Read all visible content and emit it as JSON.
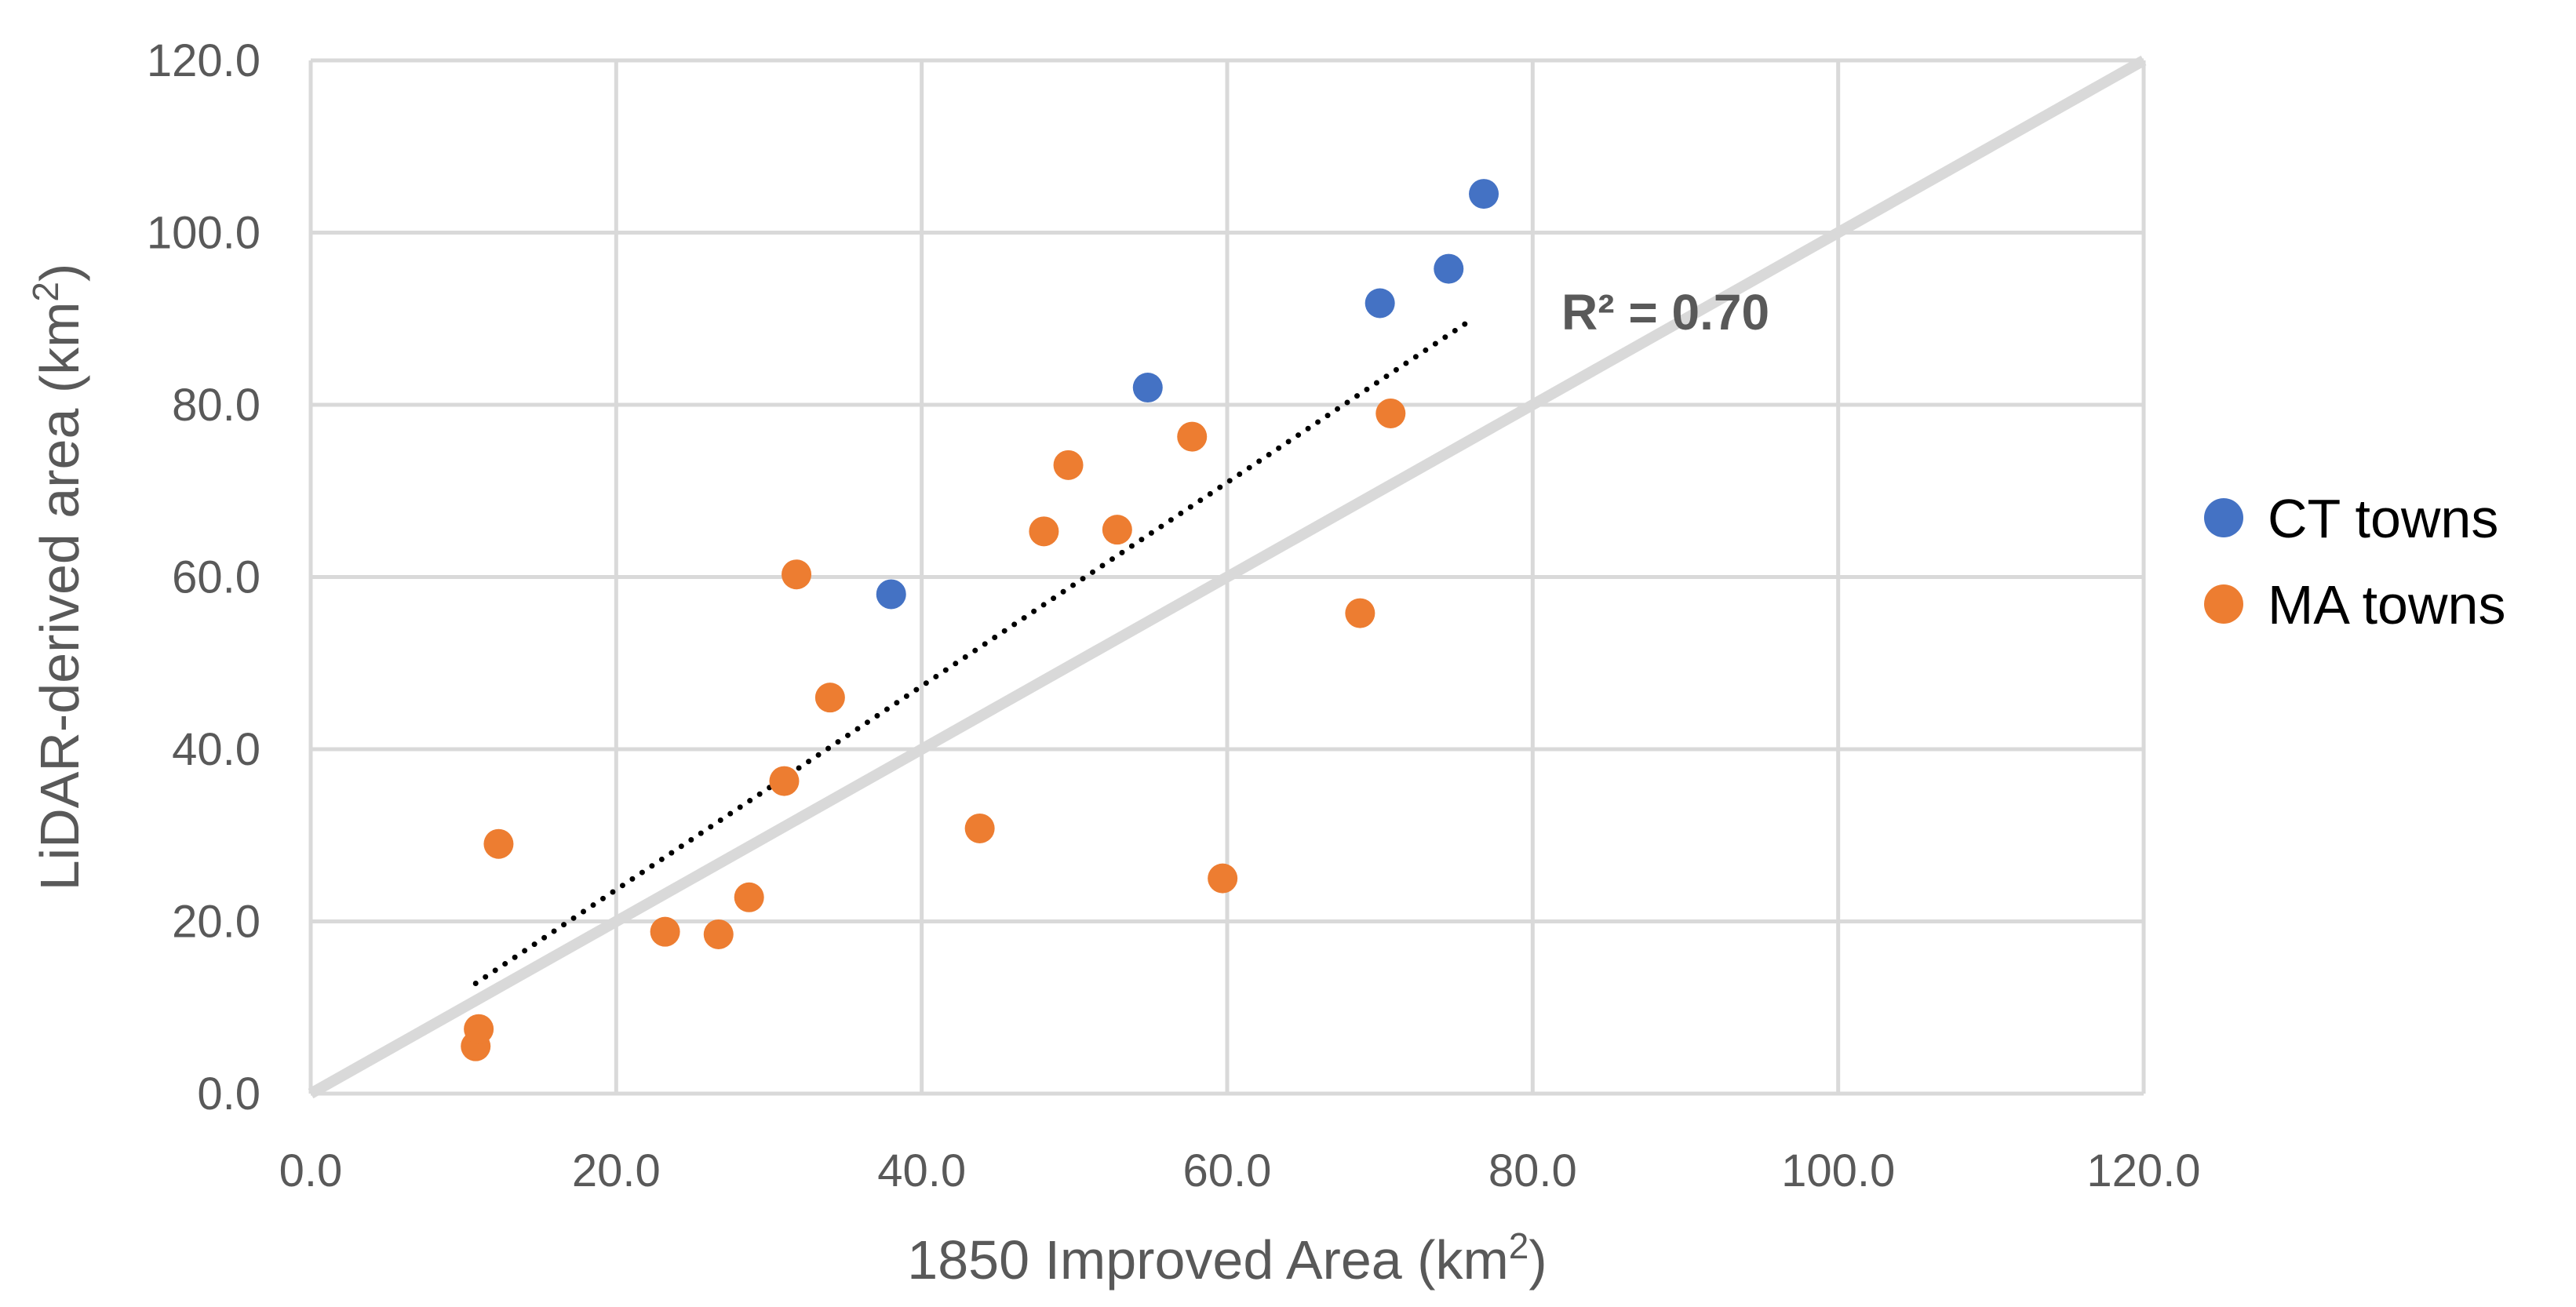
{
  "chart_data": {
    "type": "scatter",
    "title": "",
    "xlabel": "1850 Improved Area (km",
    "xlabel_sup": "2",
    "xlabel_tail": ")",
    "ylabel": "LiDAR-derived area (km",
    "ylabel_sup": "2",
    "ylabel_tail": ")",
    "xlim": [
      0,
      120
    ],
    "ylim": [
      0,
      120
    ],
    "x_ticks": [
      0,
      20,
      40,
      60,
      80,
      100,
      120
    ],
    "y_ticks": [
      0,
      20,
      40,
      60,
      80,
      100,
      120
    ],
    "x_tick_labels": [
      "0.0",
      "20.0",
      "40.0",
      "60.0",
      "80.0",
      "100.0",
      "120.0"
    ],
    "y_tick_labels": [
      "0.0",
      "20.0",
      "40.0",
      "60.0",
      "80.0",
      "100.0",
      "120.0"
    ],
    "grid": true,
    "legend_position": "right",
    "series": [
      {
        "name": "CT towns",
        "color": "#4472c4",
        "points": [
          {
            "x": 38.0,
            "y": 58.0
          },
          {
            "x": 54.8,
            "y": 82.0
          },
          {
            "x": 70.0,
            "y": 91.8
          },
          {
            "x": 74.5,
            "y": 95.8
          },
          {
            "x": 76.8,
            "y": 104.5
          }
        ]
      },
      {
        "name": "MA towns",
        "color": "#ed7d31",
        "points": [
          {
            "x": 10.8,
            "y": 5.5
          },
          {
            "x": 11.0,
            "y": 7.5
          },
          {
            "x": 12.3,
            "y": 29.0
          },
          {
            "x": 23.2,
            "y": 18.8
          },
          {
            "x": 26.7,
            "y": 18.5
          },
          {
            "x": 28.7,
            "y": 22.8
          },
          {
            "x": 31.0,
            "y": 36.3
          },
          {
            "x": 31.8,
            "y": 60.3
          },
          {
            "x": 34.0,
            "y": 46.0
          },
          {
            "x": 43.8,
            "y": 30.8
          },
          {
            "x": 48.0,
            "y": 65.3
          },
          {
            "x": 49.6,
            "y": 73.0
          },
          {
            "x": 52.8,
            "y": 65.5
          },
          {
            "x": 57.7,
            "y": 76.3
          },
          {
            "x": 59.7,
            "y": 25.0
          },
          {
            "x": 68.7,
            "y": 55.8
          },
          {
            "x": 70.7,
            "y": 79.0
          }
        ]
      }
    ],
    "reference_line": {
      "name": "1:1 line",
      "from": [
        0,
        0
      ],
      "to": [
        120,
        120
      ],
      "color": "#d9d9d9"
    },
    "trendline": {
      "type": "linear",
      "from": [
        10.8,
        12.8
      ],
      "to": [
        76.0,
        89.9
      ],
      "color": "#000000",
      "style": "dotted"
    },
    "annotation": "R² = 0.70"
  }
}
